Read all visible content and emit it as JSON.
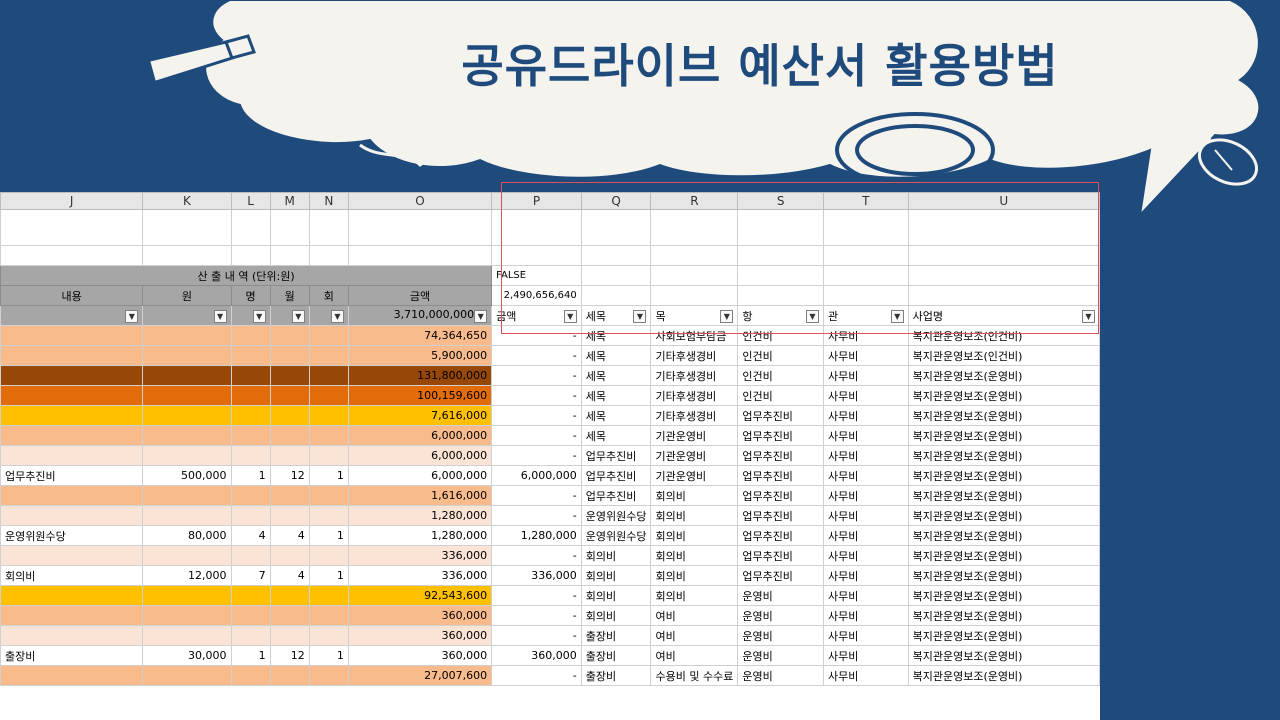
{
  "title": "공유드라이브 예산서 활용방법",
  "colors": {
    "background": "#1f4a7c",
    "cloud": "#f4f3ee",
    "highlight_box": "#e0505a"
  },
  "icons": [
    "pencil-icon",
    "mouse-icon",
    "cloud-shape"
  ],
  "columns": [
    "J",
    "K",
    "L",
    "M",
    "N",
    "O",
    "P",
    "Q",
    "R",
    "S",
    "T",
    "U"
  ],
  "banner": {
    "text": "산  출  내  역 (단위:원)",
    "p_value": "FALSE"
  },
  "headers": {
    "J": "내용",
    "K": "원",
    "L": "명",
    "M": "월",
    "N": "회",
    "O": "금액",
    "P_total": "2,490,656,640"
  },
  "filter_row": {
    "O": "3,710,000,000",
    "P": "금액",
    "Q": "세목",
    "R": "목",
    "S": "항",
    "T": "관",
    "U": "사업명"
  },
  "rows": [
    {
      "fill": "fill-a",
      "J": "",
      "K": "",
      "L": "",
      "M": "",
      "N": "",
      "O": "74,364,650",
      "P": "-",
      "Q": "세목",
      "R": "사회보험부담금",
      "S": "인건비",
      "T": "사무비",
      "U": "복지관운영보조(인건비)"
    },
    {
      "fill": "fill-a",
      "J": "",
      "K": "",
      "L": "",
      "M": "",
      "N": "",
      "O": "5,900,000",
      "P": "-",
      "Q": "세목",
      "R": "기타후생경비",
      "S": "인건비",
      "T": "사무비",
      "U": "복지관운영보조(인건비)"
    },
    {
      "fill": "fill-b",
      "J": "",
      "K": "",
      "L": "",
      "M": "",
      "N": "",
      "O": "131,800,000",
      "P": "-",
      "Q": "세목",
      "R": "기타후생경비",
      "S": "인건비",
      "T": "사무비",
      "U": "복지관운영보조(운영비)"
    },
    {
      "fill": "fill-c",
      "J": "",
      "K": "",
      "L": "",
      "M": "",
      "N": "",
      "O": "100,159,600",
      "P": "-",
      "Q": "세목",
      "R": "기타후생경비",
      "S": "인건비",
      "T": "사무비",
      "U": "복지관운영보조(운영비)"
    },
    {
      "fill": "fill-d",
      "J": "",
      "K": "",
      "L": "",
      "M": "",
      "N": "",
      "O": "7,616,000",
      "P": "-",
      "Q": "세목",
      "R": "기타후생경비",
      "S": "업무추진비",
      "T": "사무비",
      "U": "복지관운영보조(운영비)"
    },
    {
      "fill": "fill-a",
      "J": "",
      "K": "",
      "L": "",
      "M": "",
      "N": "",
      "O": "6,000,000",
      "P": "-",
      "Q": "세목",
      "R": "기관운영비",
      "S": "업무추진비",
      "T": "사무비",
      "U": "복지관운영보조(운영비)"
    },
    {
      "fill": "fill-e",
      "J": "",
      "K": "",
      "L": "",
      "M": "",
      "N": "",
      "O": "6,000,000",
      "P": "-",
      "Q": "업무추진비",
      "R": "기관운영비",
      "S": "업무추진비",
      "T": "사무비",
      "U": "복지관운영보조(운영비)"
    },
    {
      "fill": "fill-w",
      "J": "업무추진비",
      "K": "500,000",
      "L": "1",
      "M": "12",
      "N": "1",
      "O": "6,000,000",
      "P": "6,000,000",
      "Q": "업무추진비",
      "R": "기관운영비",
      "S": "업무추진비",
      "T": "사무비",
      "U": "복지관운영보조(운영비)"
    },
    {
      "fill": "fill-a",
      "J": "",
      "K": "",
      "L": "",
      "M": "",
      "N": "",
      "O": "1,616,000",
      "P": "-",
      "Q": "업무추진비",
      "R": "회의비",
      "S": "업무추진비",
      "T": "사무비",
      "U": "복지관운영보조(운영비)"
    },
    {
      "fill": "fill-e",
      "J": "",
      "K": "",
      "L": "",
      "M": "",
      "N": "",
      "O": "1,280,000",
      "P": "-",
      "Q": "운영위원수당",
      "R": "회의비",
      "S": "업무추진비",
      "T": "사무비",
      "U": "복지관운영보조(운영비)"
    },
    {
      "fill": "fill-w",
      "J": "운영위원수당",
      "K": "80,000",
      "L": "4",
      "M": "4",
      "N": "1",
      "O": "1,280,000",
      "P": "1,280,000",
      "Q": "운영위원수당",
      "R": "회의비",
      "S": "업무추진비",
      "T": "사무비",
      "U": "복지관운영보조(운영비)"
    },
    {
      "fill": "fill-e",
      "J": "",
      "K": "",
      "L": "",
      "M": "",
      "N": "",
      "O": "336,000",
      "P": "-",
      "Q": "회의비",
      "R": "회의비",
      "S": "업무추진비",
      "T": "사무비",
      "U": "복지관운영보조(운영비)"
    },
    {
      "fill": "fill-w",
      "J": "회의비",
      "K": "12,000",
      "L": "7",
      "M": "4",
      "N": "1",
      "O": "336,000",
      "P": "336,000",
      "Q": "회의비",
      "R": "회의비",
      "S": "업무추진비",
      "T": "사무비",
      "U": "복지관운영보조(운영비)"
    },
    {
      "fill": "fill-d",
      "J": "",
      "K": "",
      "L": "",
      "M": "",
      "N": "",
      "O": "92,543,600",
      "P": "-",
      "Q": "회의비",
      "R": "회의비",
      "S": "운영비",
      "T": "사무비",
      "U": "복지관운영보조(운영비)"
    },
    {
      "fill": "fill-a",
      "J": "",
      "K": "",
      "L": "",
      "M": "",
      "N": "",
      "O": "360,000",
      "P": "-",
      "Q": "회의비",
      "R": "여비",
      "S": "운영비",
      "T": "사무비",
      "U": "복지관운영보조(운영비)"
    },
    {
      "fill": "fill-e",
      "J": "",
      "K": "",
      "L": "",
      "M": "",
      "N": "",
      "O": "360,000",
      "P": "-",
      "Q": "출장비",
      "R": "여비",
      "S": "운영비",
      "T": "사무비",
      "U": "복지관운영보조(운영비)"
    },
    {
      "fill": "fill-w",
      "J": "출장비",
      "K": "30,000",
      "L": "1",
      "M": "12",
      "N": "1",
      "O": "360,000",
      "P": "360,000",
      "Q": "출장비",
      "R": "여비",
      "S": "운영비",
      "T": "사무비",
      "U": "복지관운영보조(운영비)"
    },
    {
      "fill": "fill-a",
      "J": "",
      "K": "",
      "L": "",
      "M": "",
      "N": "",
      "O": "27,007,600",
      "P": "-",
      "Q": "출장비",
      "R": "수용비 및 수수료",
      "S": "운영비",
      "T": "사무비",
      "U": "복지관운영보조(운영비)"
    }
  ]
}
